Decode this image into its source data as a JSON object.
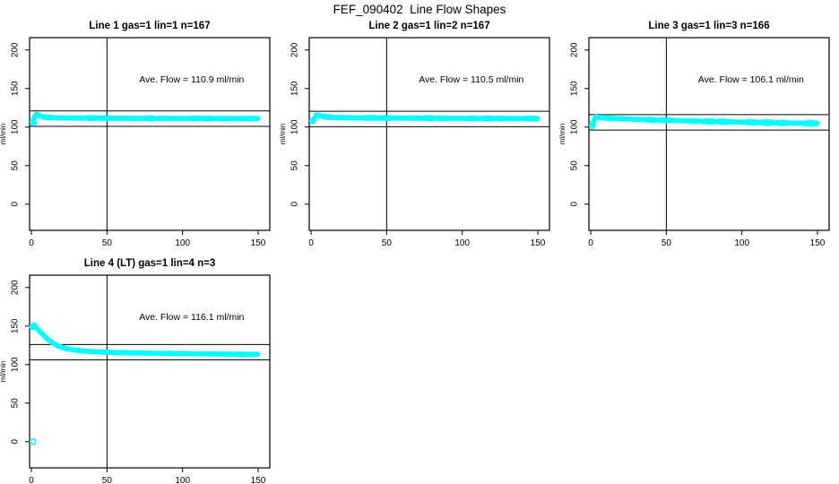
{
  "page_title": "FEF_090402  Line Flow Shapes",
  "colors": {
    "data": "#00FFFF",
    "line": "#000000",
    "background": "#FFFFFF"
  },
  "axes": {
    "x_ticks": [
      0,
      50,
      100,
      150
    ],
    "y_ticks": [
      0,
      50,
      100,
      150,
      200
    ],
    "ylabel": "ml/min",
    "x_range": [
      -1.2,
      157.7
    ],
    "y_range": [
      -34,
      216
    ],
    "vline_x": 50,
    "grid": "off",
    "legend": "none"
  },
  "chart_data": [
    {
      "type": "scatter",
      "title": "Line 1 gas=1 lin=1 n=167",
      "annotation": "Ave. Flow =  110.9  ml/min",
      "ave_flow_ml_min": 110.9,
      "ref_line_upper": 120.9,
      "ref_line_lower": 100.9,
      "jitter_amp": 0.8,
      "curve": [
        [
          1,
          107
        ],
        [
          1.5,
          110
        ],
        [
          2,
          113.5
        ],
        [
          3,
          116.5
        ],
        [
          4,
          116
        ],
        [
          5,
          115
        ],
        [
          6,
          114
        ],
        [
          8,
          113
        ],
        [
          10,
          112.5
        ],
        [
          15,
          112
        ],
        [
          25,
          111.8
        ],
        [
          50,
          111.5
        ],
        [
          75,
          111.3
        ],
        [
          100,
          111.2
        ],
        [
          125,
          111.1
        ],
        [
          150,
          111
        ]
      ],
      "markers": [
        [
          1,
          107
        ],
        [
          1.3,
          105.5
        ]
      ]
    },
    {
      "type": "scatter",
      "title": "Line 2 gas=1 lin=2 n=167",
      "annotation": "Ave. Flow =  110.5  ml/min",
      "ave_flow_ml_min": 110.5,
      "ref_line_upper": 120.5,
      "ref_line_lower": 100.5,
      "jitter_amp": 1.0,
      "curve": [
        [
          1,
          108.5
        ],
        [
          2,
          111
        ],
        [
          3,
          114.5
        ],
        [
          4,
          115.8
        ],
        [
          5,
          115.3
        ],
        [
          7,
          114
        ],
        [
          10,
          113.2
        ],
        [
          15,
          112.5
        ],
        [
          25,
          112
        ],
        [
          50,
          111.7
        ],
        [
          75,
          111.5
        ],
        [
          100,
          111.3
        ],
        [
          125,
          111.1
        ],
        [
          150,
          111
        ]
      ],
      "markers": [
        [
          1,
          108
        ]
      ]
    },
    {
      "type": "scatter",
      "title": "Line 3 gas=1 lin=3 n=166",
      "annotation": "Ave. Flow =  106.1  ml/min",
      "ave_flow_ml_min": 106.1,
      "ref_line_upper": 116.1,
      "ref_line_lower": 96.1,
      "jitter_amp": 1.3,
      "curve": [
        [
          1,
          104
        ],
        [
          2,
          108
        ],
        [
          2.5,
          111
        ],
        [
          3,
          112.8
        ],
        [
          4,
          113.2
        ],
        [
          6,
          112.6
        ],
        [
          8,
          112.2
        ],
        [
          12,
          111.6
        ],
        [
          18,
          111
        ],
        [
          25,
          110.4
        ],
        [
          35,
          109.6
        ],
        [
          50,
          108.8
        ],
        [
          65,
          108
        ],
        [
          80,
          107.2
        ],
        [
          100,
          106.4
        ],
        [
          120,
          105.6
        ],
        [
          135,
          105.1
        ],
        [
          150,
          104.8
        ]
      ],
      "markers": [
        [
          1,
          101.5
        ],
        [
          1.2,
          104
        ]
      ]
    },
    {
      "type": "scatter",
      "title": "Line 4 (LT) gas=1 lin=4 n=3",
      "annotation": "Ave. Flow =  116.1  ml/min",
      "ave_flow_ml_min": 116.1,
      "ref_line_upper": 126.1,
      "ref_line_lower": 106.1,
      "jitter_amp": 0.5,
      "curve": [
        [
          0.5,
          149.5
        ],
        [
          1,
          150
        ],
        [
          1.5,
          149.8
        ],
        [
          2,
          149
        ],
        [
          3,
          147.5
        ],
        [
          4,
          146
        ],
        [
          5,
          144
        ],
        [
          6,
          142
        ],
        [
          7,
          140
        ],
        [
          8,
          138
        ],
        [
          9,
          136
        ],
        [
          10,
          134
        ],
        [
          11,
          132.5
        ],
        [
          12,
          131
        ],
        [
          13,
          129.5
        ],
        [
          14,
          128
        ],
        [
          15,
          126.8
        ],
        [
          16,
          125.7
        ],
        [
          17,
          124.7
        ],
        [
          18,
          123.8
        ],
        [
          19,
          123
        ],
        [
          20,
          122.3
        ],
        [
          22,
          121.2
        ],
        [
          24,
          120.3
        ],
        [
          26,
          119.6
        ],
        [
          28,
          119
        ],
        [
          30,
          118.5
        ],
        [
          33,
          117.9
        ],
        [
          36,
          117.4
        ],
        [
          40,
          116.9
        ],
        [
          45,
          116.4
        ],
        [
          50,
          116
        ],
        [
          55,
          115.7
        ],
        [
          60,
          115.4
        ],
        [
          70,
          115
        ],
        [
          80,
          114.7
        ],
        [
          90,
          114.4
        ],
        [
          100,
          114.2
        ],
        [
          110,
          114
        ],
        [
          120,
          113.8
        ],
        [
          130,
          113.6
        ],
        [
          140,
          113.4
        ],
        [
          150,
          113.3
        ]
      ],
      "markers": [
        [
          1,
          0
        ],
        [
          0.7,
          149
        ],
        [
          1.5,
          150.5
        ]
      ]
    }
  ]
}
